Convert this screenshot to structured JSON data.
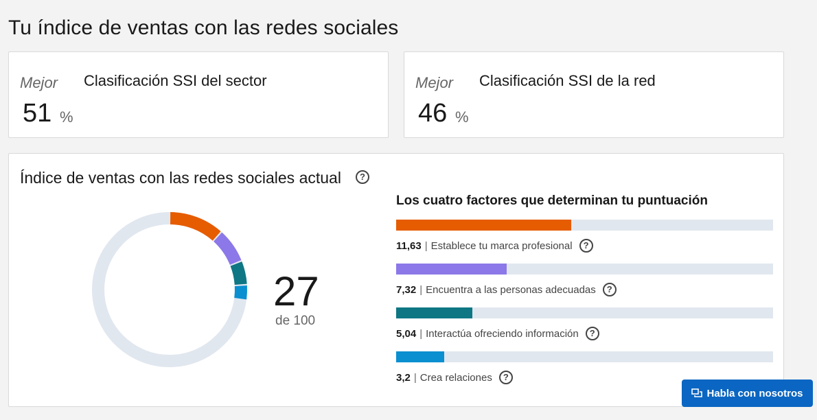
{
  "page": {
    "title": "Tu índice de ventas con las redes sociales"
  },
  "rankings": [
    {
      "qualifier": "Mejor",
      "value": "51",
      "unit": "%",
      "label": "Clasificación SSI del sector"
    },
    {
      "qualifier": "Mejor",
      "value": "46",
      "unit": "%",
      "label": "Clasificación SSI de la red"
    }
  ],
  "ssi": {
    "title": "Índice de ventas con las redes sociales actual",
    "help_icon": "question-circle-icon",
    "score": "27",
    "score_of": "de 100",
    "max": 100,
    "factors_title": "Los cuatro factores que determinan tu puntuación",
    "factors": [
      {
        "value": "11,63",
        "numeric": 11.63,
        "max": 25,
        "label": "Establece tu marca profesional",
        "color": "#e65c00"
      },
      {
        "value": "7,32",
        "numeric": 7.32,
        "max": 25,
        "label": "Encuentra a las personas adecuadas",
        "color": "#8c78e8"
      },
      {
        "value": "5,04",
        "numeric": 5.04,
        "max": 25,
        "label": "Interactúa ofreciendo información",
        "color": "#0e7783"
      },
      {
        "value": "3,2",
        "numeric": 3.2,
        "max": 25,
        "label": "Crea relaciones",
        "color": "#0a8fd0"
      }
    ],
    "track_color": "#e1e7ef"
  },
  "chat_button": {
    "label": "Habla con nosotros",
    "icon": "chat-bubbles-icon",
    "color": "#0a66c2"
  }
}
